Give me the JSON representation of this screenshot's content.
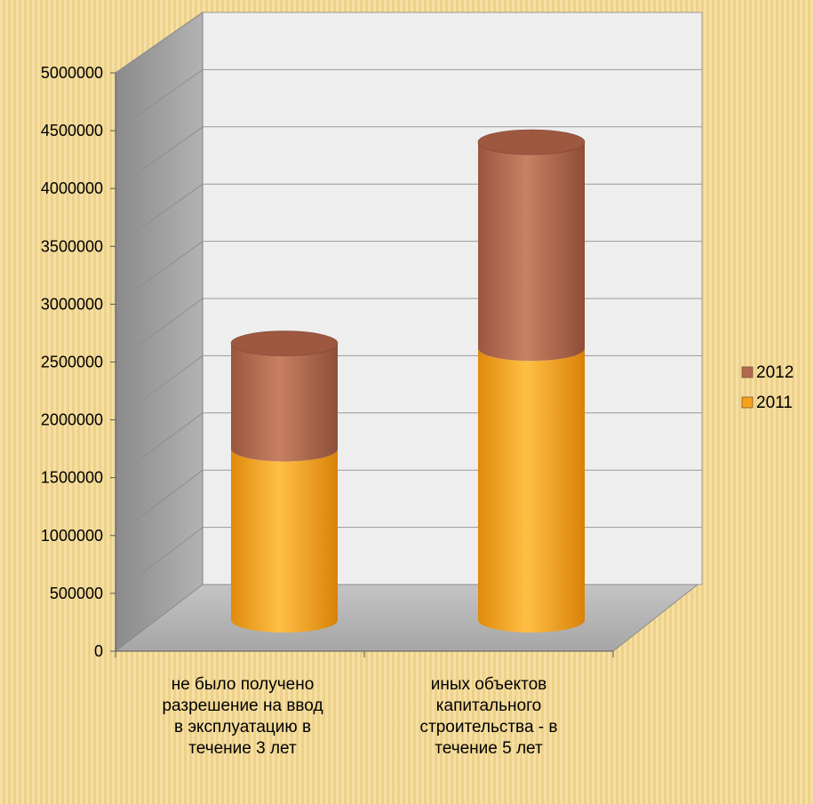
{
  "chart_data": {
    "type": "bar",
    "style": "stacked 3d cylinder",
    "categories": [
      "не было получено разрешение на ввод в эксплуатацию в течение 3 лет",
      "иных объектов капитального строительства - в течение 5 лет"
    ],
    "series": [
      {
        "name": "2011",
        "values": [
          1700000,
          2700000
        ],
        "color": "#f7a21b"
      },
      {
        "name": "2012",
        "values": [
          1050000,
          2050000
        ],
        "color": "#b06a50"
      }
    ],
    "legend_order": [
      "2012",
      "2011"
    ],
    "ylim": [
      0,
      5000000
    ],
    "yticks": [
      "0",
      "500000",
      "1000000",
      "1500000",
      "2000000",
      "2500000",
      "3000000",
      "3500000",
      "4000000",
      "4500000",
      "5000000"
    ],
    "title": "",
    "xlabel": "",
    "ylabel": "",
    "grid": true,
    "legend_position": "right"
  }
}
